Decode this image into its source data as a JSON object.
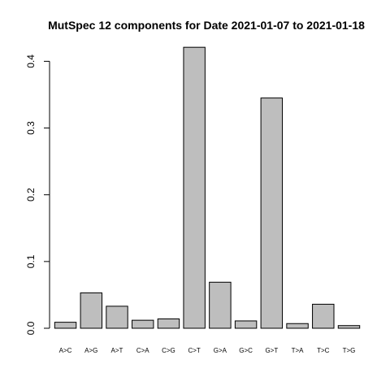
{
  "chart_data": {
    "type": "bar",
    "title": "MutSpec 12 components for Date 2021-01-07 to 2021-01-18",
    "xlabel": "",
    "ylabel": "",
    "categories": [
      "A>C",
      "A>G",
      "A>T",
      "C>A",
      "C>G",
      "C>T",
      "G>A",
      "G>C",
      "G>T",
      "T>A",
      "T>C",
      "T>G"
    ],
    "values": [
      0.009,
      0.053,
      0.033,
      0.012,
      0.014,
      0.421,
      0.069,
      0.011,
      0.345,
      0.007,
      0.036,
      0.004
    ],
    "ylim": [
      0,
      0.42
    ],
    "yticks": [
      0.0,
      0.1,
      0.2,
      0.3,
      0.4
    ],
    "ytick_labels": [
      "0.0",
      "0.1",
      "0.2",
      "0.3",
      "0.4"
    ],
    "bar_color": "#bebebe",
    "grid": false,
    "legend": "none"
  }
}
